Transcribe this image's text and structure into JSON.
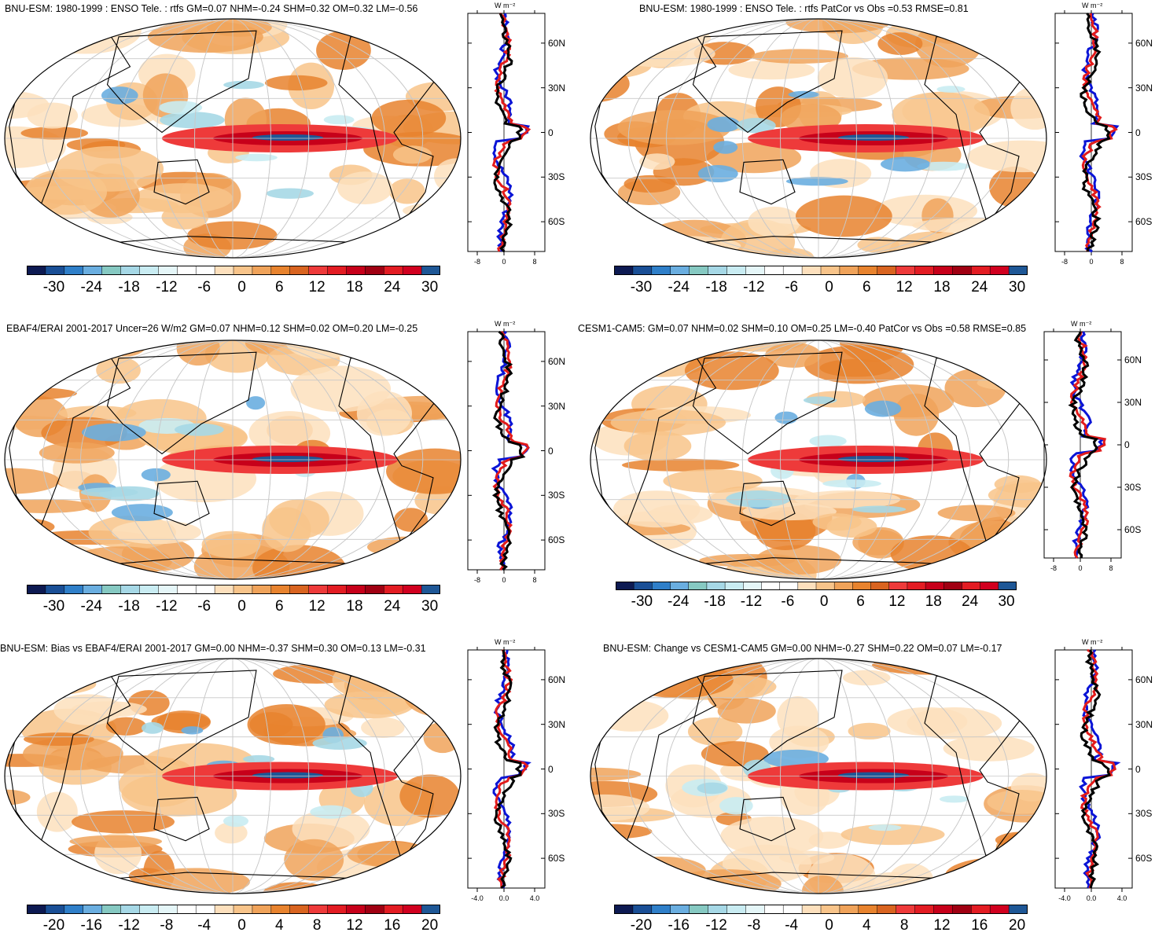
{
  "panels": [
    {
      "id": "p1",
      "title": "BNU-ESM: 1980-1999 : ENSO Tele. : rtfs GM=0.07 NHM=-0.24 SHM=0.32 OM=0.32 LM=-0.56",
      "colorbar_labels": [
        "-30",
        "-24",
        "-18",
        "-12",
        "-6",
        "0",
        "6",
        "12",
        "18",
        "24",
        "30"
      ],
      "profile_unit": "W m⁻²",
      "profile_lat_labels": [
        "60N",
        "30N",
        "0",
        "30S",
        "60S"
      ],
      "profile_x_labels": [
        "-8",
        "0",
        "8"
      ]
    },
    {
      "id": "p2",
      "title": "BNU-ESM: 1980-1999 : ENSO Tele. : rtfs PatCor vs Obs =0.53 RMSE=0.81",
      "colorbar_labels": [
        "-30",
        "-24",
        "-18",
        "-12",
        "-6",
        "0",
        "6",
        "12",
        "18",
        "24",
        "30"
      ],
      "profile_unit": "W m⁻²",
      "profile_lat_labels": [
        "60N",
        "30N",
        "0",
        "30S",
        "60S"
      ],
      "profile_x_labels": [
        "-8",
        "0",
        "8"
      ]
    },
    {
      "id": "p3",
      "title": "EBAF4/ERAI 2001-2017 Uncer=26 W/m2 GM=0.07 NHM=0.12 SHM=0.02 OM=0.20 LM=-0.25",
      "colorbar_labels": [
        "-30",
        "-24",
        "-18",
        "-12",
        "-6",
        "0",
        "6",
        "12",
        "18",
        "24",
        "30"
      ],
      "profile_unit": "W m⁻²",
      "profile_lat_labels": [
        "60N",
        "30N",
        "0",
        "30S",
        "60S"
      ],
      "profile_x_labels": [
        "-8",
        "0",
        "8"
      ]
    },
    {
      "id": "p4",
      "title": "CESM1-CAM5: GM=0.07 NHM=0.02 SHM=0.10 OM=0.25 LM=-0.40 PatCor vs Obs =0.58 RMSE=0.85",
      "colorbar_labels": [
        "-30",
        "-24",
        "-18",
        "-12",
        "-6",
        "0",
        "6",
        "12",
        "18",
        "24",
        "30"
      ],
      "profile_unit": "W m⁻²",
      "profile_lat_labels": [
        "60N",
        "30N",
        "0",
        "30S",
        "60S"
      ],
      "profile_x_labels": [
        "-8",
        "0",
        "8"
      ]
    },
    {
      "id": "p5",
      "title": "BNU-ESM: Bias vs EBAF4/ERAI 2001-2017 GM=0.00 NHM=-0.37 SHM=0.30 OM=0.13 LM=-0.31",
      "colorbar_labels": [
        "-20",
        "-16",
        "-12",
        "-8",
        "-4",
        "0",
        "4",
        "8",
        "12",
        "16",
        "20"
      ],
      "profile_unit": "W m⁻²",
      "profile_lat_labels": [
        "60N",
        "30N",
        "0",
        "30S",
        "60S"
      ],
      "profile_x_labels": [
        "-4.0",
        "0.0",
        "4.0"
      ]
    },
    {
      "id": "p6",
      "title": "BNU-ESM: Change vs CESM1-CAM5 GM=0.00 NHM=-0.27 SHM=0.22 OM=0.07 LM=-0.17",
      "colorbar_labels": [
        "-20",
        "-16",
        "-12",
        "-8",
        "-4",
        "0",
        "4",
        "8",
        "12",
        "16",
        "20"
      ],
      "profile_unit": "W m⁻²",
      "profile_lat_labels": [
        "60N",
        "30N",
        "0",
        "30S",
        "60S"
      ],
      "profile_x_labels": [
        "-4.0",
        "0.0",
        "4.0"
      ]
    }
  ],
  "palette": [
    "#0d1a52",
    "#1a4f96",
    "#2f7fc9",
    "#6aaee0",
    "#86c9c2",
    "#a6d8e6",
    "#c9ecf2",
    "#e5f6f8",
    "#ffffff",
    "#ffffff",
    "#fde0bd",
    "#f8c48a",
    "#f0a35a",
    "#e8832e",
    "#d96420",
    "#ee3a3a",
    "#e31c23",
    "#c7001a",
    "#a00012",
    "#e31c23",
    "#d1001f",
    "#1e5796"
  ],
  "profile_series_colors": {
    "model": "#e21b1b",
    "obs": "#0a14d6",
    "other": "#000000"
  }
}
